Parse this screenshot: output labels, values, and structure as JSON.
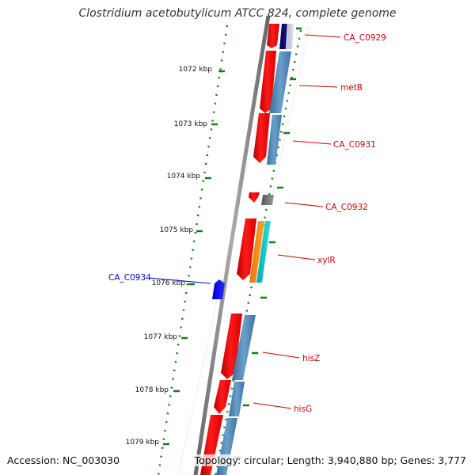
{
  "header": {
    "title": "Clostridium acetobutylicum ATCC 824, complete genome"
  },
  "footer": {
    "accession": "Accession: NC_003030",
    "summary": "Topology: circular; Length: 3,940,880 bp; Genes: 3,777"
  },
  "scale": {
    "labels": [
      "1072 kbp",
      "1073 kbp",
      "1074 kbp",
      "1075 kbp",
      "1076 kbp",
      "1077 kbp",
      "1078 kbp",
      "1079 kbp"
    ]
  },
  "genes": [
    {
      "label": "CA_C0929",
      "strand": "forward",
      "color": "#cc0000"
    },
    {
      "label": "metB",
      "strand": "forward",
      "color": "#cc0000"
    },
    {
      "label": "CA_C0931",
      "strand": "forward",
      "color": "#cc0000"
    },
    {
      "label": "CA_C0932",
      "strand": "forward",
      "color": "#cc0000"
    },
    {
      "label": "xylR",
      "strand": "forward",
      "color": "#cc0000"
    },
    {
      "label": "CA_C0934",
      "strand": "reverse",
      "color": "#0000cc"
    },
    {
      "label": "hisZ",
      "strand": "forward",
      "color": "#cc0000"
    },
    {
      "label": "hisG",
      "strand": "forward",
      "color": "#cc0000"
    }
  ],
  "colors": {
    "backbone": "#888888",
    "forward_cds": "#ff0000",
    "reverse_cds": "#0000ee",
    "feature_blue": "#4682b4",
    "ticks": "#1a7a1a"
  }
}
